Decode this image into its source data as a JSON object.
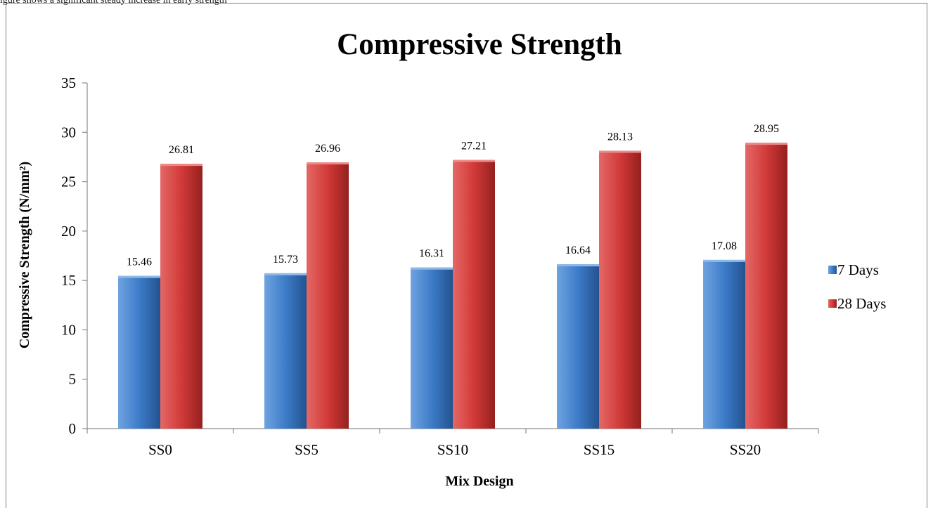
{
  "caption_fragment": "igure shows a significant steady increase in early strength",
  "chart_data": {
    "type": "bar",
    "title": "Compressive Strength",
    "xlabel": "Mix Design",
    "ylabel": "Compressive Strength (N/mm²)",
    "categories": [
      "SS0",
      "SS5",
      "SS10",
      "SS15",
      "SS20"
    ],
    "series": [
      {
        "name": "7 Days",
        "values": [
          15.46,
          15.73,
          16.31,
          16.64,
          17.08
        ],
        "labels": [
          "15.46",
          "15.73",
          "16.31",
          "16.64",
          "17.08"
        ],
        "color": "#3d7cc9"
      },
      {
        "name": "28 Days",
        "values": [
          26.81,
          26.96,
          27.21,
          28.13,
          28.95
        ],
        "labels": [
          "26.81",
          "26.96",
          "27.21",
          "28.13",
          "28.95"
        ],
        "color": "#d13a38"
      }
    ],
    "ylim": [
      0,
      35
    ],
    "yticks": [
      0,
      5,
      10,
      15,
      20,
      25,
      30,
      35
    ],
    "grid": false,
    "legend": "right"
  }
}
